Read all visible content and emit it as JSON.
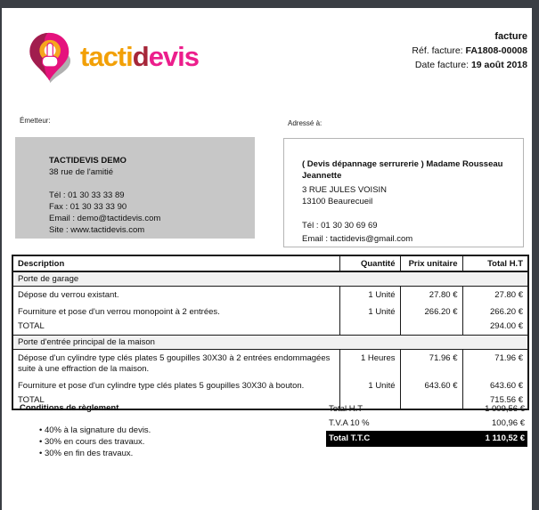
{
  "logo": {
    "part1": "tacti",
    "part2": "d",
    "part3": "evis",
    "colors": {
      "part1": "#f2a007",
      "part2": "#a62639",
      "part3": "#ec1e8c",
      "pin": "#e5127d",
      "ring": "#f5a61e"
    }
  },
  "doc_head": {
    "doc_type": "facture",
    "ref_label": "Réf. facture: ",
    "ref_value": "FA1808-00008",
    "date_label": "Date facture: ",
    "date_value": "19 août 2018"
  },
  "sender": {
    "section_label": "Émetteur:",
    "name": "TACTIDEVIS DEMO",
    "address": "38 rue de l'amitié",
    "tel": "Tél : 01 30 33 33 89",
    "fax": "Fax : 01 30 33 33 90",
    "email": "Email : demo@tactidevis.com",
    "site": "Site : www.tactidevis.com"
  },
  "recipient": {
    "section_label": "Adressé à:",
    "name": "( Devis dépannage serrurerie ) Madame Rousseau Jeannette",
    "address_line1": "3 RUE JULES VOISIN",
    "address_line2": "13100 Beaurecueil",
    "tel": "Tél : 01 30 30 69 69",
    "email": "Email : tactidevis@gmail.com"
  },
  "table": {
    "headers": {
      "description": "Description",
      "quantity": "Quantité",
      "unit_price": "Prix unitaire",
      "total": "Total H.T"
    },
    "sections": [
      {
        "title": "Porte de garage",
        "rows": [
          {
            "description": "Dépose du verrou existant.",
            "quantity": "1 Unité",
            "unit_price": "27.80 €",
            "total": "27.80 €"
          },
          {
            "description": "Fourniture et pose d'un verrou monopoint à 2 entrées.",
            "quantity": "1 Unité",
            "unit_price": "266.20 €",
            "total": "266.20 €"
          }
        ],
        "total_label": "TOTAL",
        "total_value": "294.00 €"
      },
      {
        "title": "Porte d'entrée principal de la maison",
        "rows": [
          {
            "description": "Dépose d'un cylindre type clés plates 5 goupilles 30X30 à 2 entrées endommagées suite à une effraction de la maison.",
            "quantity": "1 Heures",
            "unit_price": "71.96 €",
            "total": "71.96 €"
          },
          {
            "description": "Fourniture et pose d'un cylindre type clés plates 5 goupilles 30X30 à bouton.",
            "quantity": "1 Unité",
            "unit_price": "643.60 €",
            "total": "643.60 €"
          }
        ],
        "total_label": "TOTAL",
        "total_value": "715.56 €"
      }
    ]
  },
  "payment_terms": {
    "title": "Conditions de règlement",
    "items": [
      "40% à la signature du devis.",
      "30% en cours des travaux.",
      "30% en fin des travaux."
    ]
  },
  "summary": {
    "rows": [
      {
        "label": "Total H.T",
        "value": "1 009,56 €",
        "highlight": false
      },
      {
        "label": "T.V.A 10 %",
        "value": "100,96 €",
        "highlight": false
      },
      {
        "label": "Total T.T.C",
        "value": "1 110,52 €",
        "highlight": true
      }
    ]
  }
}
